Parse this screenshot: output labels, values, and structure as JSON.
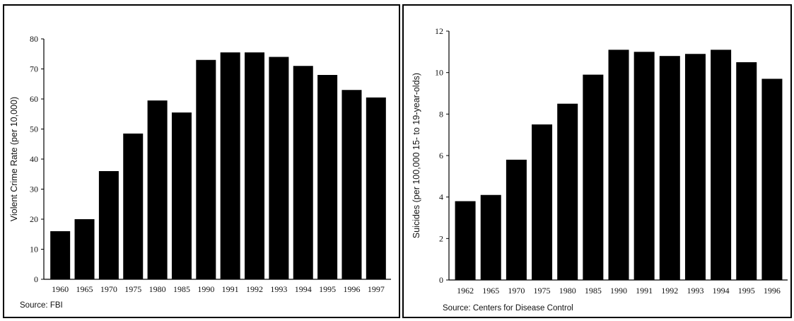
{
  "chart_data": [
    {
      "type": "bar",
      "ylabel": "Violent Crime Rate (per 10,000)",
      "xlabel": "",
      "ylim": [
        0,
        80
      ],
      "yticks": [
        0,
        10,
        20,
        30,
        40,
        50,
        60,
        70,
        80
      ],
      "categories": [
        "1960",
        "1965",
        "1970",
        "1975",
        "1980",
        "1985",
        "1990",
        "1991",
        "1992",
        "1993",
        "1994",
        "1995",
        "1996",
        "1997"
      ],
      "values": [
        16,
        20,
        36,
        48.5,
        59.5,
        55.5,
        73,
        75.5,
        75.5,
        74,
        71,
        68,
        63,
        60.5
      ],
      "source": "Source: FBI",
      "bar_color": "#000000",
      "grid": false
    },
    {
      "type": "bar",
      "ylabel": "Suicides (per 100,000 15- to 19-year-olds)",
      "xlabel": "",
      "ylim": [
        0,
        12
      ],
      "yticks": [
        0,
        2,
        4,
        6,
        8,
        10,
        12
      ],
      "categories": [
        "1962",
        "1965",
        "1970",
        "1975",
        "1980",
        "1985",
        "1990",
        "1991",
        "1992",
        "1993",
        "1994",
        "1995",
        "1996"
      ],
      "values": [
        3.8,
        4.1,
        5.8,
        7.5,
        8.5,
        9.9,
        11.1,
        11.0,
        10.8,
        10.9,
        11.1,
        10.5,
        9.7
      ],
      "source": "Source: Centers for Disease Control",
      "bar_color": "#000000",
      "grid": false
    }
  ]
}
